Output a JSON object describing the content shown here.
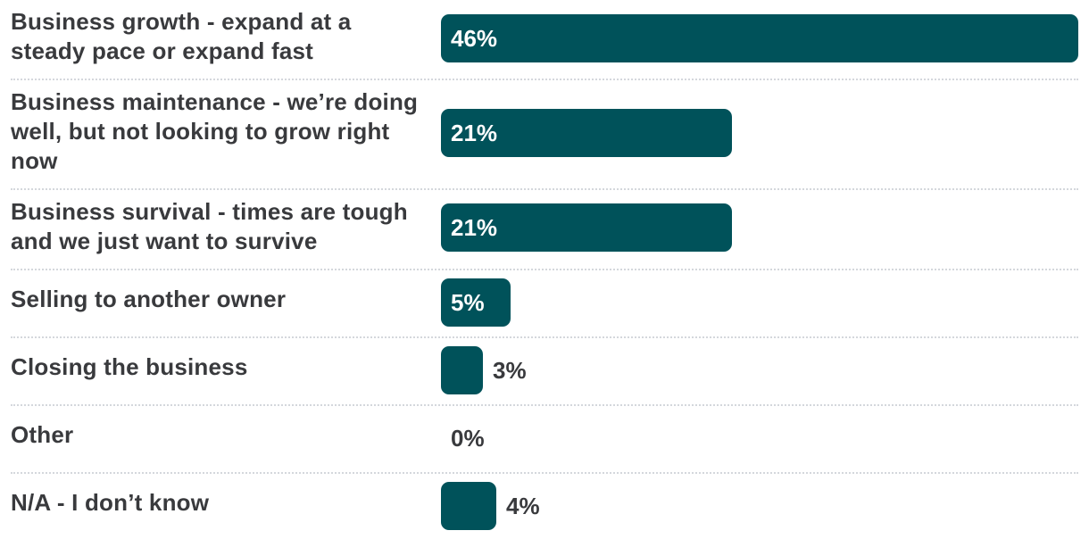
{
  "chart_data": {
    "type": "bar",
    "orientation": "horizontal",
    "categories": [
      "Business growth - expand at a steady pace or expand fast",
      "Business maintenance - we’re doing well, but not looking to grow right now",
      "Business survival - times are tough and we just want to survive",
      "Selling to another owner",
      "Closing the business",
      "Other",
      "N/A - I don’t know"
    ],
    "values": [
      46,
      21,
      21,
      5,
      3,
      0,
      4
    ],
    "value_labels": [
      "46%",
      "21%",
      "21%",
      "5%",
      "3%",
      "0%",
      "4%"
    ],
    "unit": "%",
    "xlim": [
      0,
      46
    ],
    "grid": false,
    "legend": "none",
    "bar_color": "#00525a",
    "separator_color": "#d4d7dc"
  }
}
